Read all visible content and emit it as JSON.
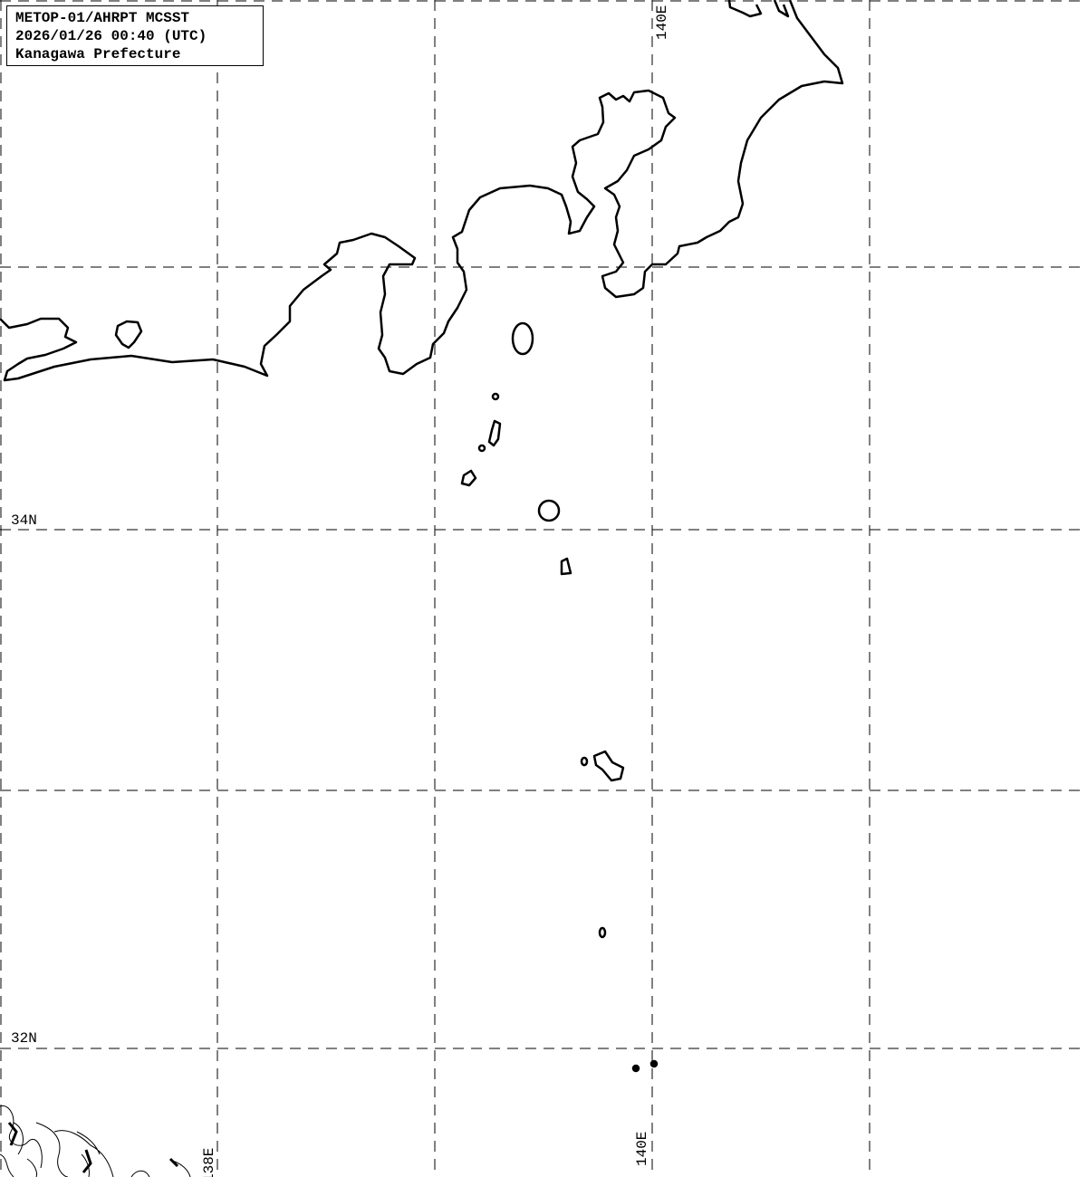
{
  "info_box": {
    "line1": "METOP-01/AHRPT MCSST",
    "line2": "2026/01/26 00:40 (UTC)",
    "line3": "Kanagawa Prefecture"
  },
  "grid": {
    "lat_labels": [
      "34N",
      "32N"
    ],
    "lon_labels": [
      "138E",
      "140E"
    ],
    "lon_label_top": "140E",
    "line_color": "#000000",
    "style": "dashed"
  },
  "colors": {
    "background": "#ffffff",
    "coastline": "#000000"
  }
}
